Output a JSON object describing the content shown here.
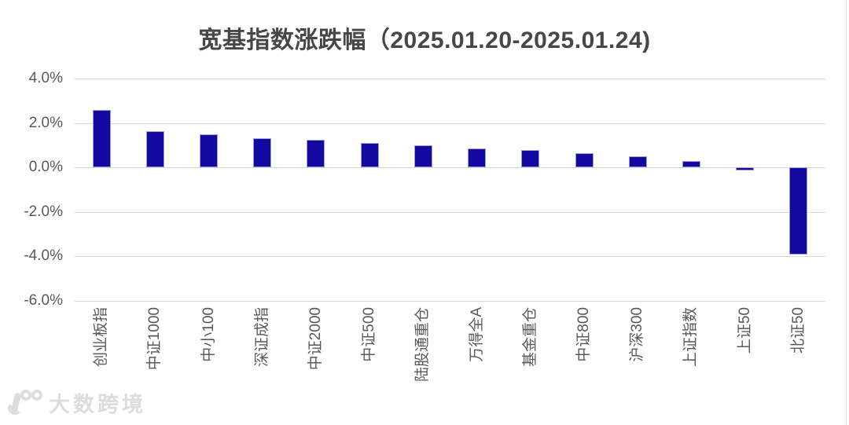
{
  "title": "宽基指数涨跌幅（2025.01.20-2025.01.24)",
  "watermark": {
    "text": "大数跨境"
  },
  "chart_data": {
    "type": "bar",
    "title": "宽基指数涨跌幅（2025.01.20-2025.01.24)",
    "categories": [
      "创业板指",
      "中证1000",
      "中小100",
      "深证成指",
      "中证2000",
      "中证500",
      "陆股通重仓",
      "万得全A",
      "基金重仓",
      "中证800",
      "沪深300",
      "上证指数",
      "上证50",
      "北证50"
    ],
    "values": [
      2.6,
      1.65,
      1.5,
      1.3,
      1.25,
      1.1,
      1.0,
      0.85,
      0.8,
      0.65,
      0.5,
      0.3,
      -0.15,
      -3.9
    ],
    "unit": "%",
    "xlabel": "",
    "ylabel": "",
    "ylim": [
      -6.0,
      4.0
    ],
    "yticks": [
      4.0,
      2.0,
      0.0,
      -2.0,
      -4.0,
      -6.0
    ],
    "ytick_labels": [
      "4.0%",
      "2.0%",
      "0.0%",
      "-2.0%",
      "-4.0%",
      "-6.0%"
    ],
    "grid": true,
    "legend": "none",
    "bar_color": "#120a9e",
    "bar_border_color": "#9a9ad6",
    "gridline_color": "#d9d9d9",
    "axis_text_color": "#595959",
    "title_color": "#474747",
    "background_color": "#ffffff"
  }
}
